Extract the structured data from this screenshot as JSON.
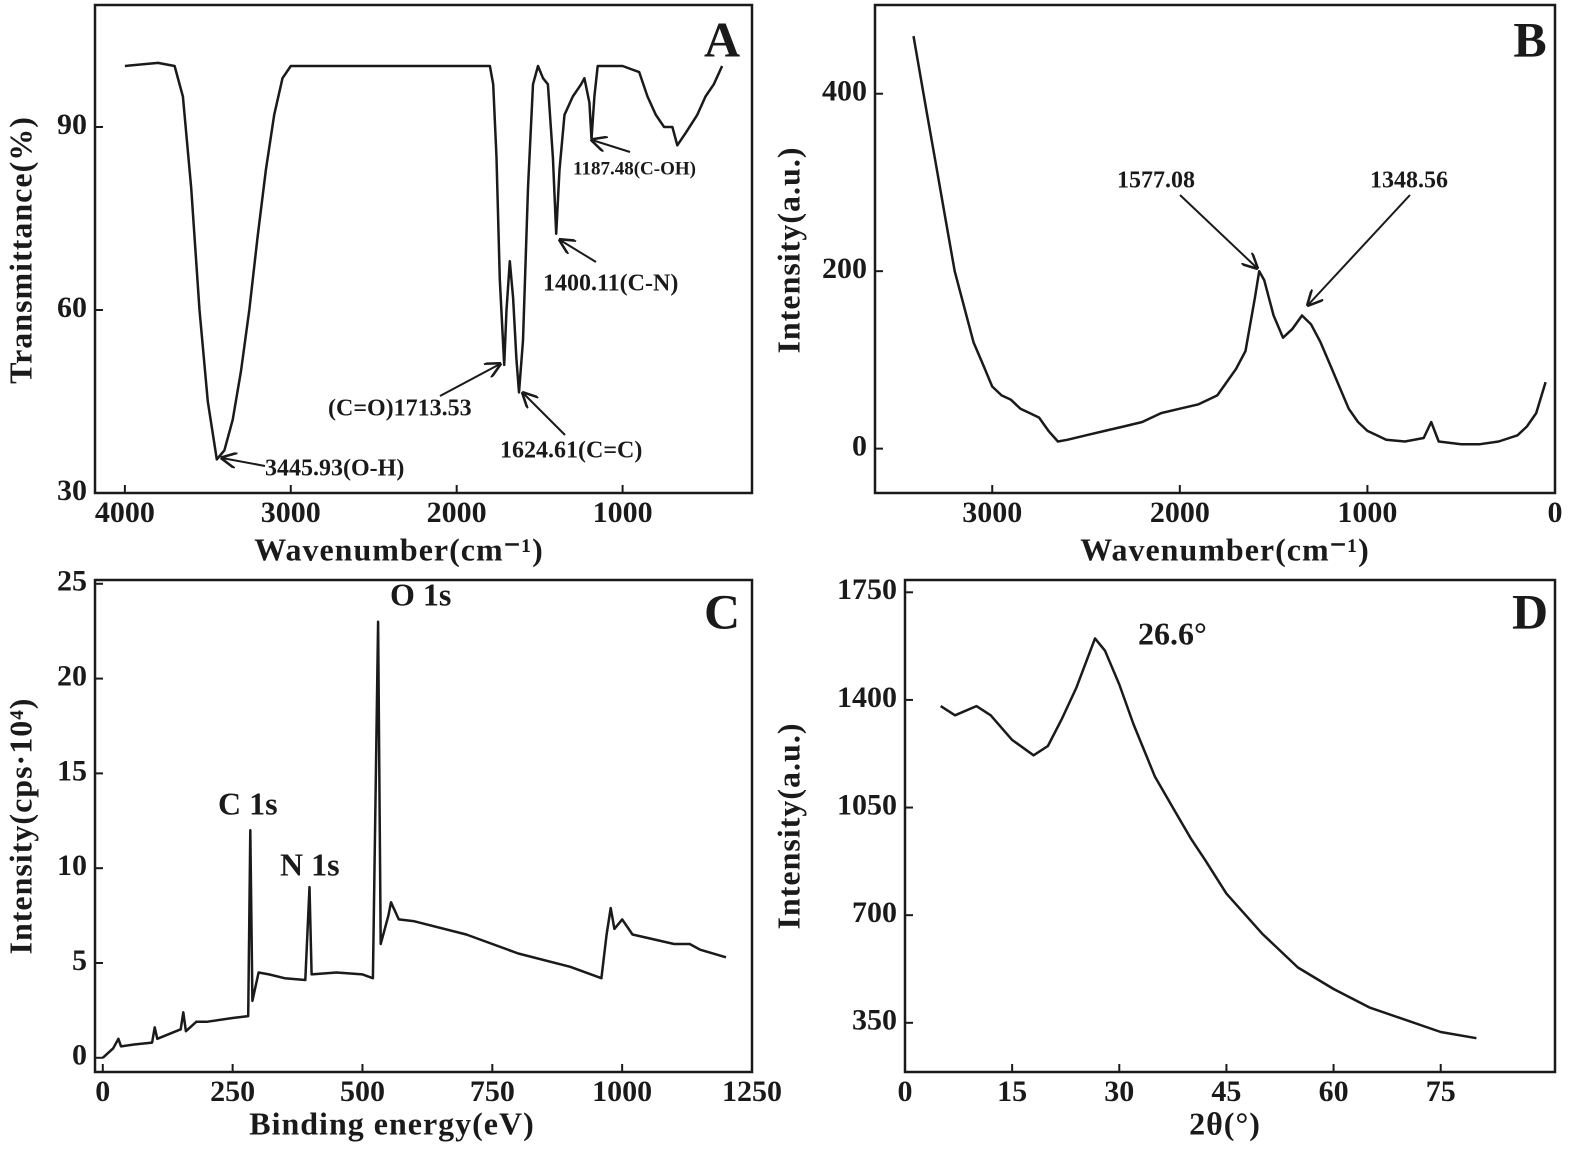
{
  "chart_data": [
    {
      "type": "line",
      "panel_label": "A",
      "x_label": "Wavenumber(cm⁻¹)",
      "y_label": "Transmittance(%)",
      "color": "#1a1a1a",
      "xlim": [
        4180,
        220
      ],
      "ylim": [
        30,
        110
      ],
      "xticks": [
        4000,
        3000,
        2000,
        1000
      ],
      "yticks": [
        30,
        60,
        90
      ],
      "x": [
        4000,
        3800,
        3700,
        3650,
        3600,
        3550,
        3500,
        3445.93,
        3400,
        3350,
        3300,
        3250,
        3200,
        3150,
        3100,
        3050,
        3000,
        2800,
        2700,
        2000,
        1800,
        1780,
        1760,
        1740,
        1713.53,
        1700,
        1680,
        1660,
        1640,
        1624.61,
        1600,
        1570,
        1540,
        1510,
        1480,
        1450,
        1420,
        1400.11,
        1380,
        1350,
        1300,
        1250,
        1230,
        1200,
        1187.48,
        1170,
        1150,
        1000,
        900,
        850,
        800,
        750,
        700,
        670,
        620,
        550,
        500,
        450,
        400
      ],
      "values": [
        100,
        100.5,
        100,
        95,
        80,
        60,
        45,
        35.5,
        37,
        42,
        50,
        60,
        72,
        83,
        92,
        98,
        100,
        100,
        100,
        100,
        100,
        97,
        85,
        65,
        51,
        60,
        68,
        62,
        52,
        46.5,
        55,
        80,
        97,
        100,
        98,
        97,
        85,
        72.5,
        83,
        92,
        95,
        97,
        98,
        94,
        88,
        95,
        100,
        100,
        99,
        95,
        92,
        90,
        90,
        87,
        89,
        92,
        95,
        97,
        100
      ],
      "annotations": [
        "3445.93(O-H)",
        "(C=O)1713.53",
        "1624.61(C=C)",
        "1400.11(C-N)",
        "1187.48(C-OH)"
      ]
    },
    {
      "type": "line",
      "panel_label": "B",
      "x_label": "Wavenumber(cm⁻¹)",
      "y_label": "Intensity(a.u.)",
      "color": "#1a1a1a",
      "xlim": [
        3625,
        0
      ],
      "ylim": [
        -50,
        500
      ],
      "xticks": [
        3000,
        2000,
        1000,
        0
      ],
      "yticks": [
        0,
        200,
        400
      ],
      "x": [
        3420,
        3350,
        3300,
        3250,
        3200,
        3150,
        3100,
        3050,
        3000,
        2950,
        2900,
        2850,
        2800,
        2750,
        2700,
        2650,
        2600,
        2500,
        2400,
        2300,
        2200,
        2100,
        2000,
        1900,
        1800,
        1750,
        1700,
        1650,
        1600,
        1577.08,
        1550,
        1500,
        1450,
        1400,
        1348.56,
        1300,
        1250,
        1200,
        1150,
        1100,
        1050,
        1000,
        950,
        900,
        800,
        700,
        660,
        620,
        500,
        400,
        300,
        200,
        150,
        100,
        50
      ],
      "values": [
        465,
        380,
        320,
        260,
        200,
        160,
        120,
        95,
        70,
        60,
        55,
        45,
        40,
        35,
        20,
        8,
        10,
        15,
        20,
        25,
        30,
        40,
        45,
        50,
        60,
        75,
        90,
        110,
        170,
        200,
        190,
        150,
        125,
        135,
        150,
        140,
        120,
        95,
        70,
        45,
        30,
        20,
        15,
        10,
        8,
        12,
        30,
        8,
        5,
        5,
        8,
        15,
        25,
        40,
        75
      ],
      "annotations": [
        "1577.08",
        "1348.56"
      ]
    },
    {
      "type": "line",
      "panel_label": "C",
      "x_label": "Binding energy(eV)",
      "y_label": "Intensity(cps·10⁴)",
      "color": "#1a1a1a",
      "xlim": [
        -15,
        1250
      ],
      "ylim": [
        -0.75,
        25.2
      ],
      "xticks": [
        0,
        250,
        500,
        750,
        1000,
        1250
      ],
      "yticks": [
        0,
        5,
        10,
        15,
        20,
        25
      ],
      "x": [
        0,
        20,
        30,
        35,
        60,
        95,
        100,
        105,
        150,
        155,
        160,
        180,
        200,
        250,
        280,
        284,
        288,
        300,
        320,
        350,
        390,
        398,
        402,
        450,
        500,
        520,
        530,
        535,
        550,
        555,
        570,
        600,
        700,
        800,
        900,
        960,
        970,
        978,
        985,
        1000,
        1020,
        1100,
        1130,
        1150,
        1200
      ],
      "values": [
        0,
        0.5,
        1,
        0.6,
        0.7,
        0.8,
        1.6,
        1,
        1.5,
        2.4,
        1.4,
        1.9,
        1.9,
        2.1,
        2.2,
        12,
        3,
        4.5,
        4.4,
        4.2,
        4.1,
        9,
        4.4,
        4.5,
        4.4,
        4.2,
        23,
        6,
        7.5,
        8.2,
        7.3,
        7.2,
        6.5,
        5.5,
        4.8,
        4.2,
        6.5,
        7.9,
        6.8,
        7.3,
        6.5,
        6,
        6,
        5.7,
        5.3
      ],
      "annotations": [
        "C 1s",
        "N 1s",
        "O 1s"
      ]
    },
    {
      "type": "line",
      "panel_label": "D",
      "x_label": "2θ(°)",
      "y_label": "Intensity(a.u.)",
      "color": "#1a1a1a",
      "xlim": [
        0,
        91
      ],
      "ylim": [
        190,
        1790
      ],
      "xticks": [
        0,
        15,
        30,
        45,
        60,
        75
      ],
      "yticks": [
        350,
        700,
        1050,
        1400,
        1750
      ],
      "x": [
        5,
        7,
        10,
        12,
        15,
        18,
        20,
        22,
        24,
        26.6,
        28,
        30,
        32,
        35,
        38,
        40,
        42,
        45,
        50,
        55,
        60,
        65,
        70,
        75,
        80
      ],
      "values": [
        1380,
        1350,
        1380,
        1350,
        1270,
        1220,
        1250,
        1340,
        1440,
        1600,
        1560,
        1450,
        1320,
        1150,
        1030,
        950,
        880,
        770,
        640,
        530,
        460,
        400,
        360,
        320,
        300
      ],
      "annotations": [
        "26.6°"
      ]
    }
  ]
}
